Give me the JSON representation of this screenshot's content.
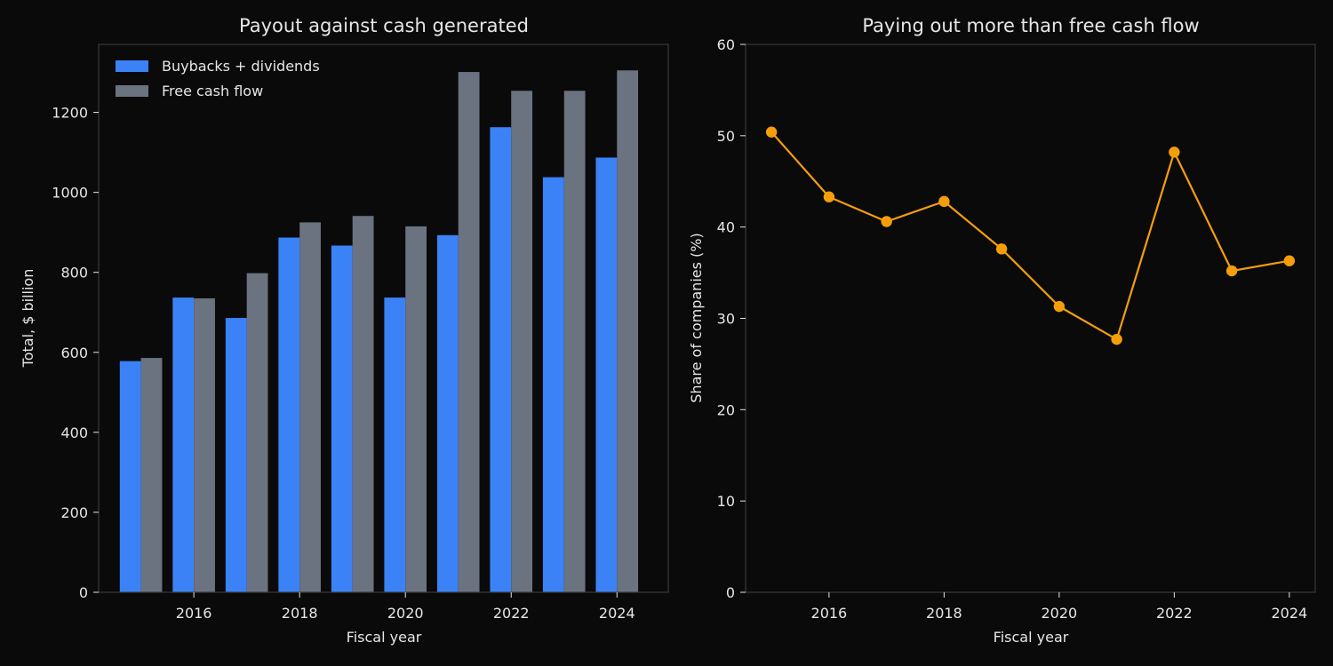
{
  "colors": {
    "background": "#0a0a0a",
    "spine": "#3a3a3a",
    "text": "#e6e6e6",
    "payout": "#3b82f6",
    "fcf": "#6b7280",
    "line": "#f59e0b"
  },
  "chart_data": [
    {
      "type": "bar",
      "title": "Payout against cash generated",
      "xlabel": "Fiscal year",
      "ylabel": "Total, $ billion",
      "categories": [
        2015,
        2016,
        2017,
        2018,
        2019,
        2020,
        2021,
        2022,
        2023,
        2024
      ],
      "xticks": [
        2016,
        2018,
        2020,
        2022,
        2024
      ],
      "yticks": [
        0,
        200,
        400,
        600,
        800,
        1000,
        1200
      ],
      "ylim": [
        0,
        1370
      ],
      "xlim": [
        2014.2,
        2024.97
      ],
      "grid": false,
      "legend_position": "top-left",
      "series": [
        {
          "name": "Buybacks + dividends",
          "values": [
            578,
            737,
            686,
            887,
            867,
            737,
            893,
            1163,
            1038,
            1087
          ]
        },
        {
          "name": "Free cash flow",
          "values": [
            586,
            735,
            798,
            925,
            941,
            915,
            1301,
            1254,
            1254,
            1305
          ]
        }
      ]
    },
    {
      "type": "line",
      "title": "Paying out more than free cash flow",
      "xlabel": "Fiscal year",
      "ylabel": "Share of companies (%)",
      "x": [
        2015,
        2016,
        2017,
        2018,
        2019,
        2020,
        2021,
        2022,
        2023,
        2024
      ],
      "xticks": [
        2016,
        2018,
        2020,
        2022,
        2024
      ],
      "yticks": [
        0,
        10,
        20,
        30,
        40,
        50,
        60
      ],
      "ylim": [
        0,
        60
      ],
      "xlim": [
        2014.55,
        2024.45
      ],
      "grid": false,
      "series": [
        {
          "values": [
            50.4,
            43.3,
            40.6,
            42.8,
            37.6,
            31.3,
            27.7,
            48.2,
            35.2,
            36.3
          ]
        }
      ]
    }
  ]
}
